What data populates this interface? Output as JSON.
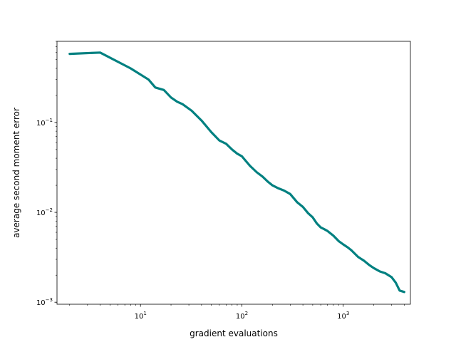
{
  "chart_data": {
    "type": "line",
    "title": "",
    "xlabel": "gradient evaluations",
    "ylabel": "average second moment error",
    "xscale": "log",
    "yscale": "log",
    "xlim": [
      1.5,
      4600
    ],
    "ylim": [
      0.00095,
      0.8
    ],
    "grid": false,
    "legend": "none",
    "x_ticks": [
      {
        "value": 10,
        "base": "10",
        "exp": "1"
      },
      {
        "value": 100,
        "base": "10",
        "exp": "2"
      },
      {
        "value": 1000,
        "base": "10",
        "exp": "3"
      }
    ],
    "y_ticks": [
      {
        "value": 0.001,
        "base": "10",
        "exp": "−3"
      },
      {
        "value": 0.01,
        "base": "10",
        "exp": "−2"
      },
      {
        "value": 0.1,
        "base": "10",
        "exp": "−1"
      }
    ],
    "series": [
      {
        "color": "#008080",
        "x": [
          2,
          4,
          8,
          12,
          14,
          17,
          20,
          23,
          26,
          32,
          40,
          50,
          60,
          70,
          80,
          90,
          100,
          110,
          120,
          140,
          160,
          180,
          200,
          230,
          260,
          300,
          350,
          400,
          450,
          500,
          550,
          600,
          650,
          700,
          800,
          900,
          1000,
          1100,
          1200,
          1400,
          1600,
          1800,
          2000,
          2300,
          2600,
          3000,
          3300,
          3600,
          4000
        ],
        "y": [
          0.58,
          0.6,
          0.4,
          0.3,
          0.245,
          0.23,
          0.19,
          0.17,
          0.16,
          0.135,
          0.105,
          0.078,
          0.063,
          0.058,
          0.05,
          0.045,
          0.042,
          0.037,
          0.033,
          0.028,
          0.025,
          0.022,
          0.02,
          0.0185,
          0.0175,
          0.016,
          0.013,
          0.0115,
          0.0098,
          0.0088,
          0.0075,
          0.0068,
          0.0065,
          0.0062,
          0.0055,
          0.0048,
          0.0044,
          0.0041,
          0.0038,
          0.0032,
          0.0029,
          0.0026,
          0.0024,
          0.0022,
          0.0021,
          0.0019,
          0.00165,
          0.00135,
          0.0013
        ]
      }
    ]
  }
}
